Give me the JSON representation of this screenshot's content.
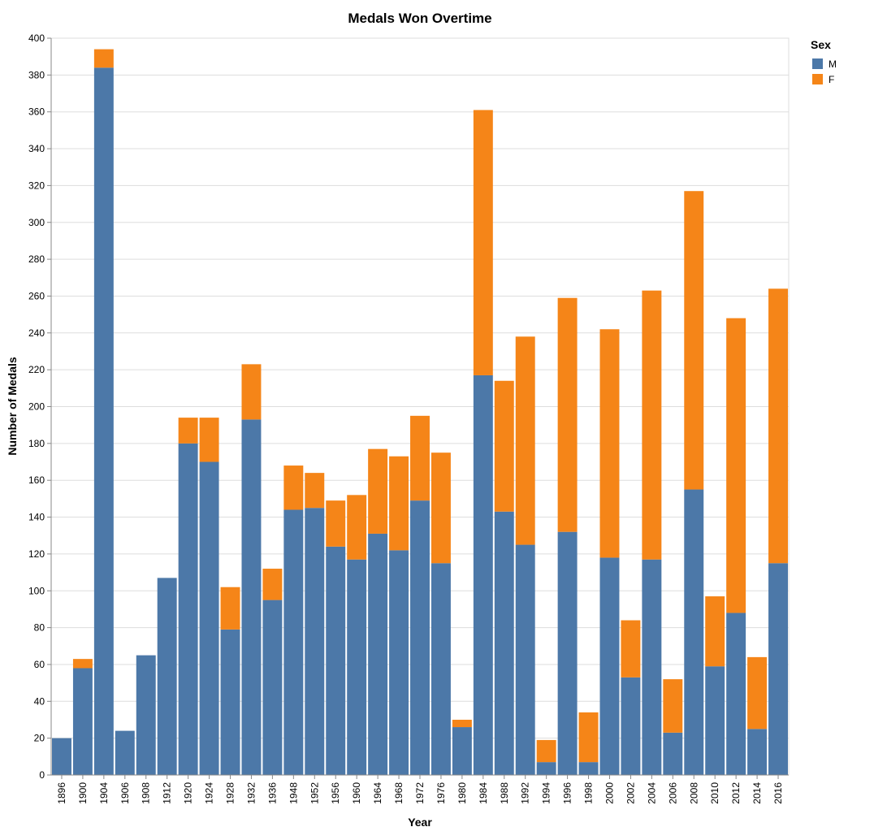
{
  "chart_data": {
    "type": "bar",
    "stacked": true,
    "title": "Medals Won Overtime",
    "xlabel": "Year",
    "ylabel": "Number of Medals",
    "ylim": [
      0,
      400
    ],
    "y_ticks": [
      0,
      20,
      40,
      60,
      80,
      100,
      120,
      140,
      160,
      180,
      200,
      220,
      240,
      260,
      280,
      300,
      320,
      340,
      360,
      380,
      400
    ],
    "grid": true,
    "legend": {
      "title": "Sex",
      "position": "top-right"
    },
    "categories": [
      "1896",
      "1900",
      "1904",
      "1906",
      "1908",
      "1912",
      "1920",
      "1924",
      "1928",
      "1932",
      "1936",
      "1948",
      "1952",
      "1956",
      "1960",
      "1964",
      "1968",
      "1972",
      "1976",
      "1980",
      "1984",
      "1988",
      "1992",
      "1994",
      "1996",
      "1998",
      "2000",
      "2002",
      "2004",
      "2006",
      "2008",
      "2010",
      "2012",
      "2014",
      "2016"
    ],
    "series": [
      {
        "name": "M",
        "color": "#4c78a8",
        "values": [
          20,
          58,
          384,
          24,
          65,
          107,
          180,
          170,
          79,
          193,
          95,
          144,
          145,
          124,
          117,
          131,
          122,
          149,
          115,
          26,
          217,
          143,
          125,
          7,
          132,
          7,
          118,
          53,
          117,
          23,
          155,
          59,
          88,
          25,
          115
        ]
      },
      {
        "name": "F",
        "color": "#f58518",
        "values": [
          0,
          5,
          10,
          0,
          0,
          0,
          14,
          24,
          23,
          30,
          17,
          24,
          19,
          25,
          35,
          46,
          51,
          46,
          60,
          4,
          144,
          71,
          113,
          12,
          127,
          27,
          124,
          31,
          146,
          29,
          162,
          38,
          160,
          39,
          149
        ]
      }
    ]
  }
}
